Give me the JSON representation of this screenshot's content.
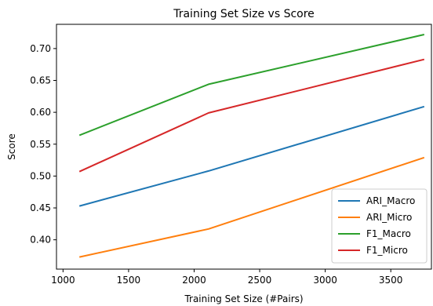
{
  "chart_data": {
    "type": "line",
    "title": "Training Set Size vs Score",
    "xlabel": "Training Set Size (#Pairs)",
    "ylabel": "Score",
    "x": [
      1125,
      2110,
      3755
    ],
    "xlim": [
      950,
      3810
    ],
    "ylim": [
      0.354,
      0.738
    ],
    "xticks": [
      1000,
      1500,
      2000,
      2500,
      3000,
      3500
    ],
    "yticks": [
      "0.40",
      "0.45",
      "0.50",
      "0.55",
      "0.60",
      "0.65",
      "0.70"
    ],
    "grid": false,
    "legend_position": "lower right",
    "series": [
      {
        "name": "ARI_Macro",
        "color": "#1f77b4",
        "values": [
          0.453,
          0.508,
          0.609
        ]
      },
      {
        "name": "ARI_Micro",
        "color": "#ff7f0e",
        "values": [
          0.373,
          0.417,
          0.529
        ]
      },
      {
        "name": "F1_Macro",
        "color": "#2ca02c",
        "values": [
          0.564,
          0.644,
          0.722
        ]
      },
      {
        "name": "F1_Micro",
        "color": "#d62728",
        "values": [
          0.507,
          0.599,
          0.683
        ]
      }
    ]
  }
}
